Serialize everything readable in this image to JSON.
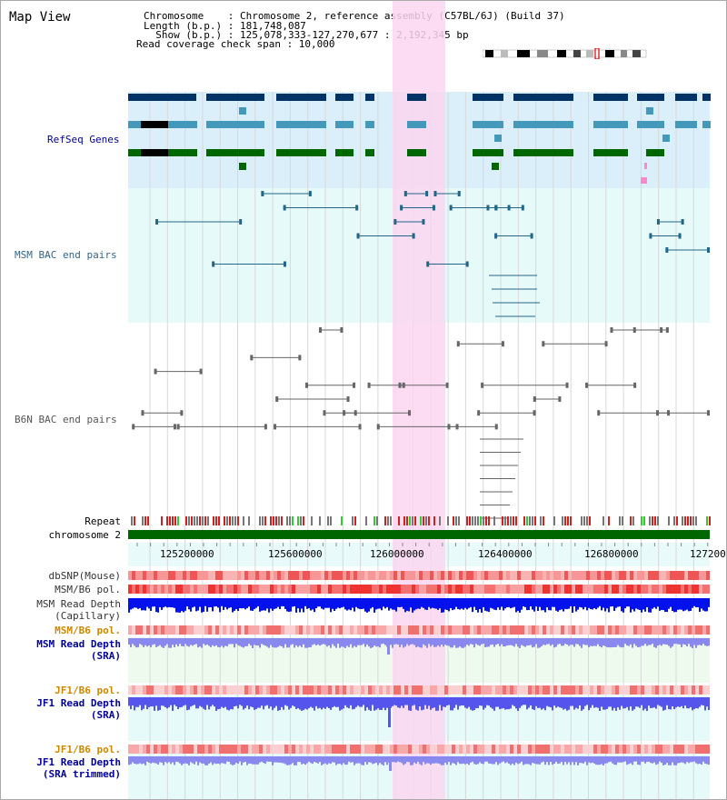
{
  "header": {
    "title": "Map View",
    "chromosome_line": "Chromosome    : Chromosome 2, reference assembly (C57BL/6J) (Build 37)",
    "length_line": "Length (b.p.) : 181,748,087",
    "show_line": "  Show (b.p.) : 125,078,333-127,270,677 : 2,192,345 bp",
    "coverage_line": "Read coverage check span : 10,000"
  },
  "tracks": {
    "refseq": {
      "label": "RefSeq Genes",
      "color": "#000099"
    },
    "msm_bac": {
      "label": "MSM BAC end pairs",
      "color": "#336688"
    },
    "b6n_bac": {
      "label": "B6N BAC end pairs",
      "color": "#555555"
    },
    "repeat": {
      "label": "Repeat"
    },
    "chromosome": {
      "label": "chromosome 2"
    }
  },
  "axis": {
    "ticks": [
      "125200000",
      "125600000",
      "126000000",
      "126400000",
      "126800000",
      "127200"
    ]
  },
  "lower_tracks": [
    {
      "id": "dbsnp",
      "lines": [
        "dbSNP(Mouse)"
      ],
      "color": "#333333"
    },
    {
      "id": "msm_b6_pol_1",
      "lines": [
        "MSM/B6 pol."
      ],
      "color": "#333333"
    },
    {
      "id": "msm_read_depth_cap",
      "lines": [
        "MSM Read Depth",
        "(Capillary)"
      ],
      "color": "#333333"
    },
    {
      "id": "msm_b6_pol_2",
      "lines": [
        "MSM/B6 pol."
      ],
      "color": "#cc8800"
    },
    {
      "id": "msm_read_depth_sra",
      "lines": [
        "MSM Read Depth",
        "(SRA)"
      ],
      "color": "#000099"
    },
    {
      "id": "jf1_b6_pol_1",
      "lines": [
        "JF1/B6 pol."
      ],
      "color": "#cc8800"
    },
    {
      "id": "jf1_read_depth_sra",
      "lines": [
        "JF1 Read Depth",
        "(SRA)"
      ],
      "color": "#000099"
    },
    {
      "id": "jf1_b6_pol_2",
      "lines": [
        "JF1/B6 pol."
      ],
      "color": "#cc8800"
    },
    {
      "id": "jf1_read_depth_trim",
      "lines": [
        "JF1 Read Depth",
        "(SRA trimmed)"
      ],
      "color": "#000099"
    }
  ],
  "colors": {
    "refseq_bg": "#dbeffa",
    "msm_bg": "#e6fafa",
    "highlight": "#fad6f0",
    "gene_dark": "#003366",
    "gene_mid": "#4499bb",
    "gene_green": "#006600",
    "chrom_bar": "#006600"
  }
}
